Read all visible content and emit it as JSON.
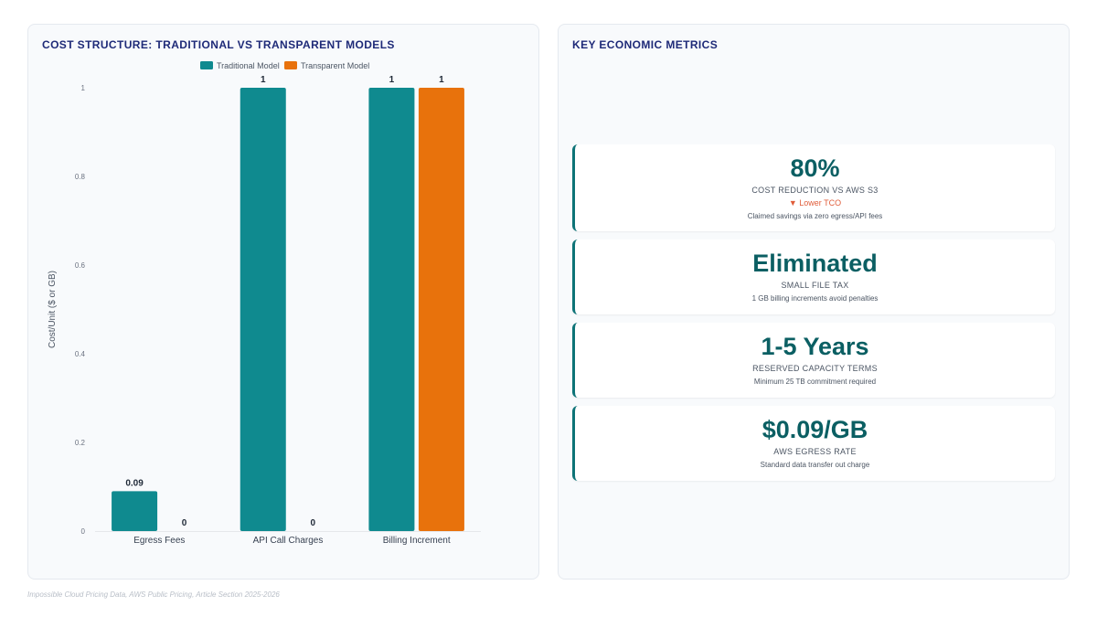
{
  "chart_panel": {
    "title": "COST STRUCTURE: TRADITIONAL VS TRANSPARENT MODELS"
  },
  "chart_data": {
    "type": "bar",
    "title": "COST STRUCTURE: TRADITIONAL VS TRANSPARENT MODELS",
    "categories": [
      "Egress Fees",
      "API Call Charges",
      "Billing Increment"
    ],
    "series": [
      {
        "name": "Traditional Model",
        "values": [
          0.09,
          1,
          1
        ],
        "color": "#0f8a8f"
      },
      {
        "name": "Transparent Model",
        "values": [
          0,
          0,
          1
        ],
        "color": "#e8720c"
      }
    ],
    "value_labels": [
      [
        "0.09",
        "1",
        "1"
      ],
      [
        "0",
        "0",
        "1"
      ]
    ],
    "ylabel": "Cost/Unit ($ or GB)",
    "xlabel": "",
    "ylim": [
      0,
      1
    ],
    "yticks": [
      0,
      0.2,
      0.4,
      0.6,
      0.8,
      1
    ],
    "ytick_labels": [
      "0",
      "0.2",
      "0.4",
      "0.6",
      "0.8",
      "1"
    ],
    "grid": false,
    "legend_position": "top-center"
  },
  "metrics_panel": {
    "title": "KEY ECONOMIC METRICS",
    "cards": [
      {
        "value": "80%",
        "label": "COST REDUCTION VS AWS S3",
        "trend": "▼ Lower TCO",
        "description": "Claimed savings via zero egress/API fees"
      },
      {
        "value": "Eliminated",
        "label": "SMALL FILE TAX",
        "description": "1 GB billing increments avoid penalties"
      },
      {
        "value": "1-5 Years",
        "label": "RESERVED CAPACITY TERMS",
        "description": "Minimum 25 TB commitment required"
      },
      {
        "value": "$0.09/GB",
        "label": "AWS EGRESS RATE",
        "description": "Standard data transfer out charge"
      }
    ]
  },
  "footer": {
    "source": "Impossible Cloud Pricing Data, AWS Public Pricing, Article Section 2025-2026"
  }
}
